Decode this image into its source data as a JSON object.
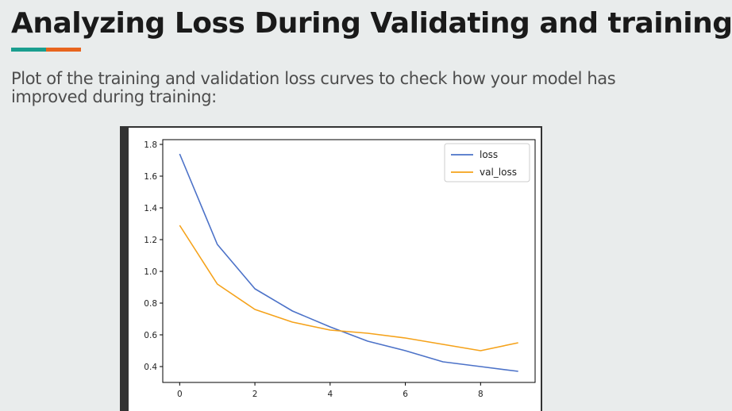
{
  "header": {
    "title": "Analyzing Loss During Validating and training",
    "accent_colors": [
      "#1a9e8f",
      "#e8651e"
    ]
  },
  "description": "Plot of  the training and validation loss curves to check how your model has improved during training:",
  "chart_data": {
    "type": "line",
    "title": "",
    "xlabel": "",
    "ylabel": "",
    "x": [
      0,
      1,
      2,
      3,
      4,
      5,
      6,
      7,
      8,
      9
    ],
    "xlim": [
      -0.45,
      9.45
    ],
    "ylim": [
      0.3,
      1.83
    ],
    "xticks": [
      0,
      2,
      4,
      6,
      8
    ],
    "yticks": [
      0.4,
      0.6,
      0.8,
      1.0,
      1.2,
      1.4,
      1.6,
      1.8
    ],
    "ytick_labels": [
      "0.4",
      "0.6",
      "0.8",
      "1.0",
      "1.2",
      "1.4",
      "1.6",
      "1.8"
    ],
    "grid": false,
    "legend_position": "top-right",
    "series": [
      {
        "name": "loss",
        "color": "#4c72c8",
        "values": [
          1.74,
          1.17,
          0.89,
          0.75,
          0.65,
          0.56,
          0.5,
          0.43,
          0.4,
          0.37
        ]
      },
      {
        "name": "val_loss",
        "color": "#f5a21a",
        "values": [
          1.29,
          0.92,
          0.76,
          0.68,
          0.63,
          0.61,
          0.58,
          0.54,
          0.5,
          0.55
        ]
      }
    ]
  }
}
